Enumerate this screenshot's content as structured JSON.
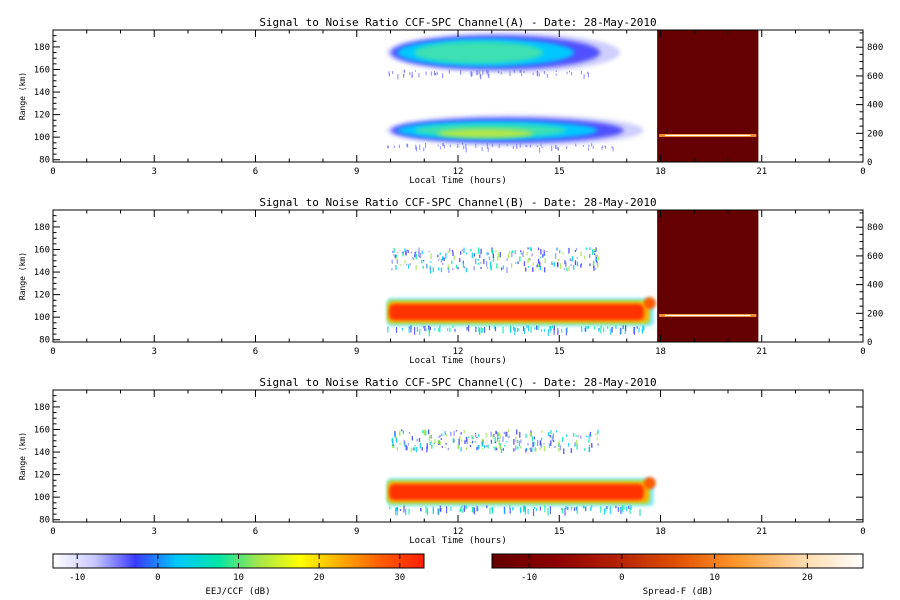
{
  "colors": {
    "eej_colormap": [
      "#ffffff",
      "#c9c9ff",
      "#3a3aff",
      "#00c8ff",
      "#00e6a8",
      "#a6e64a",
      "#ffff00",
      "#ffaa00",
      "#ff5a00",
      "#ff1f00"
    ],
    "spreadf_colormap": [
      "#640000",
      "#8b0000",
      "#b32000",
      "#e05000",
      "#ff9a30",
      "#ffd9a8",
      "#ffffff"
    ],
    "spreadf_background": "#640000"
  },
  "chart_data": [
    {
      "type": "heatmap",
      "title": "Signal to Noise Ratio CCF-SPC Channel(A) - Date: 28-May-2010",
      "xlabel": "Local Time (hours)",
      "ylabel": "Range (km)",
      "xlim": [
        0,
        24
      ],
      "ylim": [
        78,
        195
      ],
      "xticks": [
        "0",
        "3",
        "6",
        "9",
        "12",
        "15",
        "18",
        "21",
        "0"
      ],
      "yticks": [
        "80",
        "100",
        "120",
        "140",
        "160",
        "180"
      ],
      "right_axis": {
        "ylim": [
          0,
          920
        ],
        "ticks": [
          "0",
          "200",
          "400",
          "600",
          "800"
        ]
      },
      "eej_regions": [
        {
          "t_start": 9.9,
          "t_end": 16.8,
          "r_min": 160,
          "r_max": 190,
          "snr_peak": 5
        },
        {
          "t_start": 9.9,
          "t_end": 17.5,
          "r_min": 95,
          "r_max": 117,
          "snr_peak": 10
        }
      ],
      "spread_f": {
        "t_start": 17.9,
        "t_end": 20.9,
        "trace_range_km": 185
      }
    },
    {
      "type": "heatmap",
      "title": "Signal to Noise Ratio CCF-SPC Channel(B) - Date: 28-May-2010",
      "xlabel": "Local Time (hours)",
      "ylabel": "Range (km)",
      "xlim": [
        0,
        24
      ],
      "ylim": [
        78,
        195
      ],
      "xticks": [
        "0",
        "3",
        "6",
        "9",
        "12",
        "15",
        "18",
        "21",
        "0"
      ],
      "yticks": [
        "80",
        "100",
        "120",
        "140",
        "160",
        "180"
      ],
      "right_axis": {
        "ylim": [
          0,
          920
        ],
        "ticks": [
          "0",
          "200",
          "400",
          "600",
          "800"
        ]
      },
      "eej_regions": [
        {
          "t_start": 10,
          "t_end": 16.2,
          "r_min": 143,
          "r_max": 162,
          "snr_peak": 2,
          "sparse": true
        },
        {
          "t_start": 9.9,
          "t_end": 17.8,
          "r_min": 93,
          "r_max": 116,
          "snr_peak": 30
        }
      ],
      "spread_f": {
        "t_start": 17.9,
        "t_end": 20.9,
        "trace_range_km": 185
      }
    },
    {
      "type": "heatmap",
      "title": "Signal to Noise Ratio CCF-SPC Channel(C) - Date: 28-May-2010",
      "xlabel": "Local Time (hours)",
      "ylabel": "Range (km)",
      "xlim": [
        0,
        24
      ],
      "ylim": [
        78,
        195
      ],
      "xticks": [
        "0",
        "3",
        "6",
        "9",
        "12",
        "15",
        "18",
        "21",
        "0"
      ],
      "yticks": [
        "80",
        "100",
        "120",
        "140",
        "160",
        "180"
      ],
      "eej_regions": [
        {
          "t_start": 10,
          "t_end": 16.2,
          "r_min": 143,
          "r_max": 160,
          "snr_peak": 2,
          "sparse": true
        },
        {
          "t_start": 9.9,
          "t_end": 17.8,
          "r_min": 93,
          "r_max": 116,
          "snr_peak": 30
        }
      ],
      "spread_f": null
    }
  ],
  "colorbars": [
    {
      "label": "EEJ/CCF (dB)",
      "range": [
        -13,
        33
      ],
      "ticks": [
        "-10",
        "0",
        "10",
        "20",
        "30"
      ]
    },
    {
      "label": "Spread-F (dB)",
      "range": [
        -14,
        26
      ],
      "ticks": [
        "-10",
        "0",
        "10",
        "20"
      ]
    }
  ]
}
